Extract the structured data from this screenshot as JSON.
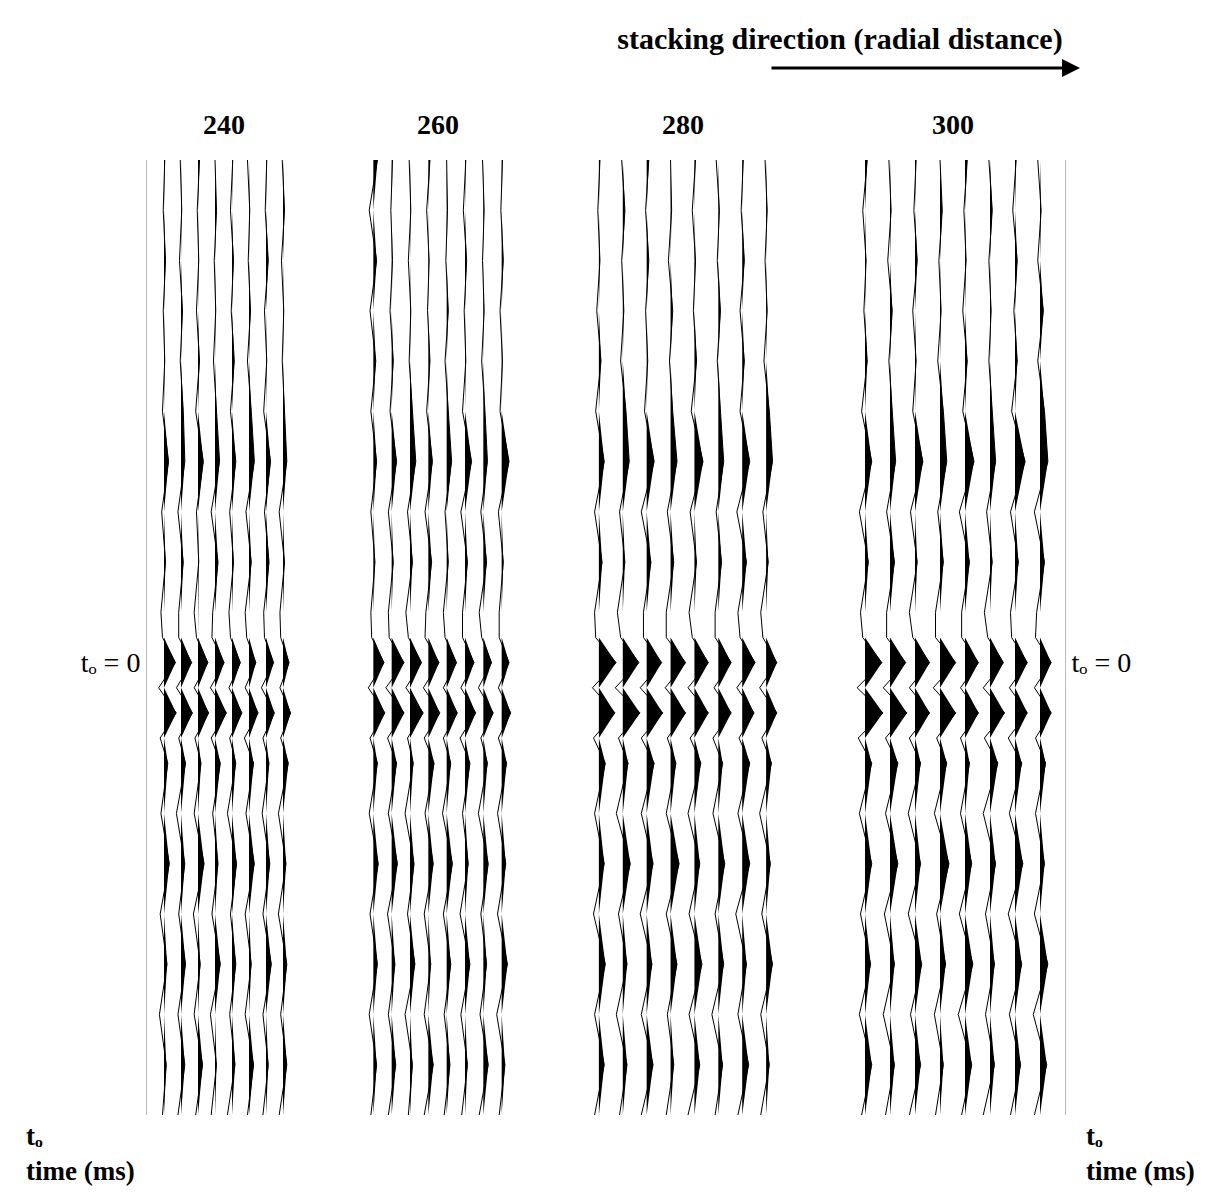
{
  "chart_data": {
    "type": "wiggle",
    "title": "stacking direction (radial distance)",
    "y_label": [
      "tₒ",
      "time (ms)"
    ],
    "t": [
      -100,
      -90,
      -80,
      -70,
      -60,
      -50,
      -40,
      -30,
      -20,
      -10,
      -5,
      0,
      5,
      10,
      15,
      20,
      30,
      40,
      50,
      60,
      70,
      80,
      90
    ],
    "ylim": [
      -100,
      90
    ],
    "yticks": [
      {
        "value": 0,
        "label": "tₒ = 0"
      }
    ],
    "tick_labels": "y",
    "color": "#000000",
    "panels": [
      {
        "title": 240,
        "xlim": [
          -1,
          8
        ],
        "traces": [
          [
            0.1,
            -0.1,
            0.2,
            -0.1,
            0.1,
            -0.2,
            0.6,
            -0.3,
            0.2,
            -0.4,
            -0.2,
            1.5,
            -0.7,
            1.6,
            -0.5,
            0.5,
            -0.4,
            0.7,
            -0.5,
            0.4,
            -0.6,
            0.3,
            -0.2
          ],
          [
            -0.1,
            0.1,
            -0.2,
            0.2,
            -0.1,
            0.3,
            0.5,
            -0.4,
            0.3,
            -0.3,
            -0.3,
            1.4,
            -0.6,
            1.5,
            -0.3,
            0.6,
            -0.6,
            0.5,
            -0.3,
            0.6,
            -0.4,
            0.5,
            -0.4
          ],
          [
            0.2,
            -0.1,
            0.1,
            -0.2,
            0.2,
            -0.3,
            0.7,
            -0.2,
            0.1,
            -0.5,
            -0.2,
            1.3,
            -0.5,
            1.4,
            -0.4,
            0.4,
            -0.5,
            0.8,
            -0.6,
            0.3,
            -0.5,
            0.6,
            -0.3
          ],
          [
            0.0,
            0.2,
            -0.1,
            0.1,
            -0.2,
            0.2,
            0.6,
            -0.5,
            0.4,
            -0.3,
            -0.4,
            1.2,
            -0.6,
            1.5,
            -0.5,
            0.7,
            -0.3,
            0.4,
            -0.4,
            0.7,
            -0.6,
            0.2,
            -0.5
          ],
          [
            0.1,
            -0.2,
            0.2,
            -0.1,
            0.3,
            -0.2,
            0.5,
            -0.3,
            0.2,
            -0.4,
            -0.2,
            1.1,
            -0.4,
            1.3,
            -0.3,
            0.5,
            -0.6,
            0.6,
            -0.2,
            0.5,
            -0.3,
            0.4,
            -0.6
          ],
          [
            -0.2,
            0.1,
            -0.1,
            0.2,
            -0.2,
            0.3,
            0.7,
            -0.4,
            0.3,
            -0.5,
            -0.3,
            0.9,
            -0.5,
            1.2,
            -0.6,
            0.6,
            -0.4,
            0.7,
            -0.5,
            0.3,
            -0.5,
            0.6,
            -0.2
          ],
          [
            0.1,
            -0.1,
            0.3,
            -0.2,
            0.1,
            -0.3,
            0.6,
            -0.2,
            0.4,
            -0.3,
            -0.2,
            1.0,
            -0.6,
            1.1,
            -0.4,
            0.4,
            -0.5,
            0.5,
            -0.4,
            0.7,
            -0.4,
            0.3,
            -0.4
          ],
          [
            -0.1,
            0.2,
            -0.2,
            0.1,
            -0.1,
            0.2,
            0.5,
            -0.5,
            0.2,
            -0.4,
            -0.3,
            0.8,
            -0.4,
            1.0,
            -0.3,
            0.7,
            -0.6,
            0.4,
            -0.6,
            0.5,
            -0.3,
            0.5,
            -0.5
          ]
        ]
      },
      {
        "title": 260,
        "xlim": [
          -1,
          8
        ],
        "traces": [
          [
            0.5,
            -0.5,
            0.4,
            -0.4,
            0.3,
            -0.3,
            0.4,
            -0.3,
            0.2,
            -0.3,
            -0.2,
            1.3,
            -0.6,
            1.4,
            -0.4,
            0.5,
            -0.5,
            0.6,
            -0.4,
            0.5,
            -0.5,
            0.4,
            -0.3
          ],
          [
            0.1,
            -0.1,
            0.1,
            -0.2,
            0.2,
            -0.2,
            0.6,
            -0.4,
            0.2,
            -0.4,
            -0.3,
            1.5,
            -0.7,
            1.5,
            -0.5,
            0.6,
            -0.4,
            0.7,
            -0.5,
            0.4,
            -0.4,
            0.5,
            -0.4
          ],
          [
            -0.1,
            0.1,
            -0.2,
            0.1,
            -0.1,
            0.3,
            0.7,
            -0.3,
            0.3,
            -0.5,
            -0.2,
            1.4,
            -0.5,
            1.6,
            -0.3,
            0.4,
            -0.6,
            0.5,
            -0.3,
            0.6,
            -0.6,
            0.3,
            -0.2
          ],
          [
            0.2,
            -0.2,
            0.1,
            -0.1,
            0.2,
            -0.2,
            0.5,
            -0.4,
            0.4,
            -0.3,
            -0.4,
            1.3,
            -0.6,
            1.4,
            -0.5,
            0.7,
            -0.4,
            0.6,
            -0.5,
            0.3,
            -0.5,
            0.6,
            -0.5
          ],
          [
            0.0,
            0.1,
            -0.1,
            0.2,
            -0.2,
            0.2,
            0.6,
            -0.2,
            0.2,
            -0.4,
            -0.2,
            1.2,
            -0.4,
            1.3,
            -0.4,
            0.5,
            -0.5,
            0.7,
            -0.4,
            0.5,
            -0.3,
            0.4,
            -0.3
          ],
          [
            0.1,
            -0.2,
            0.2,
            -0.1,
            0.1,
            -0.3,
            0.8,
            -0.5,
            0.3,
            -0.3,
            -0.3,
            1.1,
            -0.5,
            1.3,
            -0.6,
            0.6,
            -0.3,
            0.4,
            -0.6,
            0.6,
            -0.5,
            0.3,
            -0.4
          ],
          [
            -0.1,
            0.1,
            -0.1,
            0.1,
            -0.2,
            0.2,
            0.5,
            -0.3,
            0.4,
            -0.5,
            -0.2,
            1.0,
            -0.6,
            1.2,
            -0.3,
            0.5,
            -0.6,
            0.6,
            -0.3,
            0.4,
            -0.4,
            0.6,
            -0.5
          ],
          [
            0.1,
            -0.1,
            0.2,
            -0.2,
            0.1,
            -0.2,
            0.9,
            -0.4,
            0.2,
            -0.3,
            -0.3,
            0.9,
            -0.4,
            1.1,
            -0.4,
            0.6,
            -0.5,
            0.5,
            -0.5,
            0.7,
            -0.6,
            0.4,
            -0.3
          ]
        ]
      },
      {
        "title": 280,
        "xlim": [
          -1,
          8
        ],
        "traces": [
          [
            0.1,
            -0.1,
            0.1,
            -0.2,
            0.2,
            -0.3,
            0.5,
            -0.4,
            0.3,
            -0.4,
            -0.3,
            1.6,
            -0.6,
            1.5,
            -0.5,
            0.6,
            -0.4,
            0.5,
            -0.5,
            0.6,
            -0.4,
            0.5,
            -0.4
          ],
          [
            -0.1,
            0.2,
            -0.1,
            0.1,
            -0.2,
            0.3,
            0.6,
            -0.3,
            0.2,
            -0.5,
            -0.2,
            1.5,
            -0.7,
            1.6,
            -0.4,
            0.5,
            -0.6,
            0.7,
            -0.4,
            0.4,
            -0.6,
            0.4,
            -0.3
          ],
          [
            0.2,
            -0.1,
            0.2,
            -0.1,
            0.1,
            -0.2,
            0.7,
            -0.5,
            0.4,
            -0.3,
            -0.3,
            1.4,
            -0.6,
            1.5,
            -0.5,
            0.7,
            -0.5,
            0.6,
            -0.6,
            0.5,
            -0.5,
            0.6,
            -0.5
          ],
          [
            0.0,
            0.1,
            -0.2,
            0.2,
            -0.1,
            0.2,
            0.6,
            -0.3,
            0.3,
            -0.4,
            -0.4,
            1.4,
            -0.5,
            1.4,
            -0.3,
            0.5,
            -0.4,
            0.8,
            -0.4,
            0.6,
            -0.3,
            0.3,
            -0.4
          ],
          [
            0.1,
            -0.2,
            0.1,
            -0.1,
            0.2,
            -0.3,
            0.8,
            -0.4,
            0.2,
            -0.5,
            -0.2,
            1.3,
            -0.6,
            1.3,
            -0.4,
            0.6,
            -0.6,
            0.5,
            -0.5,
            0.7,
            -0.5,
            0.5,
            -0.6
          ],
          [
            -0.2,
            0.1,
            -0.1,
            0.2,
            -0.1,
            0.2,
            0.5,
            -0.2,
            0.3,
            -0.3,
            -0.3,
            1.2,
            -0.4,
            1.2,
            -0.5,
            0.4,
            -0.5,
            0.6,
            -0.3,
            0.5,
            -0.6,
            0.4,
            -0.3
          ],
          [
            0.1,
            -0.1,
            0.2,
            -0.2,
            0.2,
            -0.2,
            0.7,
            -0.5,
            0.4,
            -0.4,
            -0.2,
            1.2,
            -0.5,
            1.1,
            -0.3,
            0.7,
            -0.4,
            0.7,
            -0.6,
            0.4,
            -0.4,
            0.6,
            -0.4
          ],
          [
            -0.1,
            0.1,
            -0.1,
            0.1,
            -0.2,
            0.3,
            0.6,
            -0.3,
            0.2,
            -0.5,
            -0.3,
            1.0,
            -0.6,
            1.0,
            -0.4,
            0.5,
            -0.6,
            0.4,
            -0.4,
            0.6,
            -0.5,
            0.3,
            -0.5
          ]
        ]
      },
      {
        "title": 300,
        "xlim": [
          -1,
          8
        ],
        "traces": [
          [
            0.2,
            -0.2,
            0.1,
            -0.1,
            0.2,
            -0.3,
            0.6,
            -0.5,
            0.3,
            -0.4,
            -0.2,
            1.5,
            -0.7,
            1.6,
            -0.6,
            0.6,
            -0.5,
            0.6,
            -0.4,
            0.5,
            -0.5,
            0.6,
            -0.3
          ],
          [
            -0.1,
            0.1,
            -0.2,
            0.2,
            -0.1,
            0.2,
            0.5,
            -0.3,
            0.4,
            -0.3,
            -0.3,
            1.4,
            -0.6,
            1.5,
            -0.4,
            0.7,
            -0.4,
            0.7,
            -0.5,
            0.4,
            -0.6,
            0.4,
            -0.4
          ],
          [
            0.1,
            -0.1,
            0.2,
            -0.2,
            0.1,
            -0.2,
            0.7,
            -0.4,
            0.2,
            -0.5,
            -0.2,
            1.3,
            -0.5,
            1.3,
            -0.5,
            0.5,
            -0.6,
            0.5,
            -0.6,
            0.6,
            -0.4,
            0.5,
            -0.5
          ],
          [
            0.0,
            0.2,
            -0.1,
            0.1,
            -0.2,
            0.3,
            0.6,
            -0.2,
            0.3,
            -0.4,
            -0.4,
            1.4,
            -0.6,
            1.4,
            -0.3,
            0.6,
            -0.5,
            0.8,
            -0.3,
            0.5,
            -0.5,
            0.3,
            -0.4
          ],
          [
            0.2,
            -0.1,
            0.1,
            -0.2,
            0.2,
            -0.2,
            0.8,
            -0.5,
            0.4,
            -0.3,
            -0.3,
            1.2,
            -0.4,
            1.2,
            -0.4,
            0.4,
            -0.4,
            0.6,
            -0.5,
            0.7,
            -0.6,
            0.6,
            -0.3
          ],
          [
            -0.1,
            0.2,
            -0.1,
            0.1,
            -0.1,
            0.2,
            0.5,
            -0.3,
            0.2,
            -0.5,
            -0.2,
            1.2,
            -0.6,
            1.3,
            -0.5,
            0.7,
            -0.6,
            0.5,
            -0.4,
            0.4,
            -0.4,
            0.4,
            -0.6
          ],
          [
            0.1,
            -0.2,
            0.2,
            -0.1,
            0.2,
            -0.3,
            0.9,
            -0.4,
            0.3,
            -0.4,
            -0.3,
            1.1,
            -0.5,
            1.1,
            -0.6,
            0.6,
            -0.5,
            0.7,
            -0.6,
            0.6,
            -0.5,
            0.5,
            -0.4
          ],
          [
            -0.2,
            0.1,
            -0.2,
            0.3,
            -0.2,
            0.4,
            0.7,
            -0.5,
            0.4,
            -0.3,
            -0.4,
            1.0,
            -0.5,
            1.0,
            -0.4,
            0.5,
            -0.4,
            0.4,
            -0.5,
            0.7,
            -0.6,
            0.6,
            -0.5
          ]
        ]
      }
    ]
  }
}
